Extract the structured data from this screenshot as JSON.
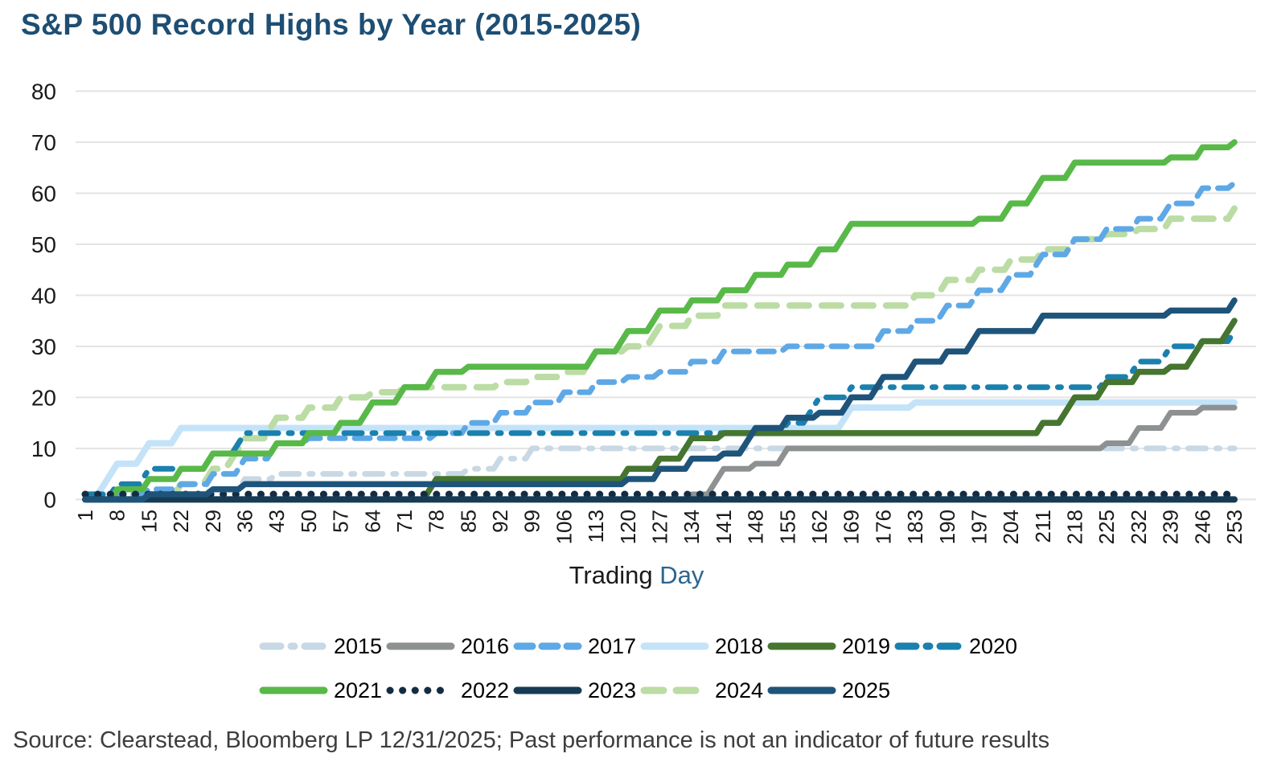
{
  "title": "S&P 500 Record Highs by Year (2015-2025)",
  "source_note": "Source: Clearstead, Bloomberg LP 12/31/2025; Past performance is not an indicator of future results",
  "chart_data": {
    "type": "line",
    "title": "S&P 500 Record Highs by Year (2015-2025)",
    "xlabel_parts": {
      "prefix": "Trading ",
      "highlight": "Day"
    },
    "ylabel": "",
    "ylim": [
      0,
      80
    ],
    "yticks": [
      0,
      10,
      20,
      30,
      40,
      50,
      60,
      70,
      80
    ],
    "grid": "horizontal",
    "legend_position": "bottom",
    "x": [
      1,
      8,
      15,
      22,
      29,
      36,
      43,
      50,
      57,
      64,
      71,
      78,
      85,
      92,
      99,
      106,
      113,
      120,
      127,
      134,
      141,
      148,
      155,
      162,
      169,
      176,
      183,
      190,
      197,
      204,
      211,
      218,
      225,
      232,
      239,
      246,
      253
    ],
    "xtick_labels": [
      "1",
      "8",
      "15",
      "22",
      "29",
      "36",
      "43",
      "50",
      "57",
      "64",
      "71",
      "78",
      "85",
      "92",
      "99",
      "106",
      "113",
      "120",
      "127",
      "134",
      "141",
      "148",
      "155",
      "162",
      "169",
      "176",
      "183",
      "190",
      "197",
      "204",
      "211",
      "218",
      "225",
      "232",
      "239",
      "246",
      "253"
    ],
    "series": [
      {
        "name": "2015",
        "color": "#C8D8E5",
        "pattern": "dash-dot",
        "values": [
          0,
          0,
          0,
          0,
          0,
          4,
          5,
          5,
          5,
          5,
          5,
          5,
          6,
          8,
          10,
          10,
          10,
          10,
          10,
          10,
          10,
          10,
          10,
          10,
          10,
          10,
          10,
          10,
          10,
          10,
          10,
          10,
          10,
          10,
          10,
          10,
          10
        ]
      },
      {
        "name": "2016",
        "color": "#8E9192",
        "pattern": "solid",
        "values": [
          0,
          0,
          0,
          0,
          0,
          0,
          0,
          0,
          0,
          0,
          0,
          0,
          0,
          0,
          0,
          0,
          0,
          0,
          0,
          1,
          6,
          7,
          10,
          10,
          10,
          10,
          10,
          10,
          10,
          10,
          10,
          10,
          11,
          14,
          17,
          18,
          18
        ]
      },
      {
        "name": "2017",
        "color": "#5FA8E6",
        "pattern": "dashed",
        "values": [
          0,
          1,
          2,
          3,
          5,
          8,
          11,
          12,
          12,
          12,
          12,
          13,
          15,
          17,
          19,
          21,
          23,
          24,
          25,
          27,
          29,
          29,
          30,
          30,
          30,
          33,
          35,
          38,
          41,
          44,
          48,
          51,
          53,
          55,
          58,
          61,
          62
        ]
      },
      {
        "name": "2018",
        "color": "#C4E3F8",
        "pattern": "solid",
        "values": [
          1,
          7,
          11,
          14,
          14,
          14,
          14,
          14,
          14,
          14,
          14,
          14,
          14,
          14,
          14,
          14,
          14,
          14,
          14,
          14,
          14,
          14,
          14,
          14,
          18,
          18,
          19,
          19,
          19,
          19,
          19,
          19,
          19,
          19,
          19,
          19,
          19
        ]
      },
      {
        "name": "2019",
        "color": "#45752F",
        "pattern": "solid",
        "values": [
          0,
          0,
          0,
          0,
          0,
          0,
          0,
          0,
          0,
          0,
          0,
          4,
          4,
          4,
          4,
          4,
          4,
          6,
          8,
          12,
          13,
          13,
          13,
          13,
          13,
          13,
          13,
          13,
          13,
          13,
          15,
          20,
          23,
          25,
          26,
          31,
          35
        ]
      },
      {
        "name": "2020",
        "color": "#1A80AE",
        "pattern": "dash-dot",
        "values": [
          1,
          3,
          6,
          6,
          9,
          13,
          13,
          13,
          13,
          13,
          13,
          13,
          13,
          13,
          13,
          13,
          13,
          13,
          13,
          13,
          13,
          13,
          15,
          20,
          22,
          22,
          22,
          22,
          22,
          22,
          22,
          22,
          24,
          27,
          30,
          31,
          33
        ]
      },
      {
        "name": "2021",
        "color": "#58B948",
        "pattern": "solid",
        "values": [
          0,
          2,
          4,
          6,
          9,
          9,
          11,
          13,
          15,
          19,
          22,
          25,
          26,
          26,
          26,
          26,
          29,
          33,
          37,
          39,
          41,
          44,
          46,
          49,
          54,
          54,
          54,
          54,
          55,
          58,
          63,
          66,
          66,
          66,
          67,
          69,
          70
        ]
      },
      {
        "name": "2022",
        "color": "#142C42",
        "pattern": "dotted",
        "values": [
          1,
          1,
          1,
          1,
          1,
          1,
          1,
          1,
          1,
          1,
          1,
          1,
          1,
          1,
          1,
          1,
          1,
          1,
          1,
          1,
          1,
          1,
          1,
          1,
          1,
          1,
          1,
          1,
          1,
          1,
          1,
          1,
          1,
          1,
          1,
          1,
          1
        ]
      },
      {
        "name": "2023",
        "color": "#173B54",
        "pattern": "solid",
        "values": [
          0,
          0,
          0,
          0,
          0,
          0,
          0,
          0,
          0,
          0,
          0,
          0,
          0,
          0,
          0,
          0,
          0,
          0,
          0,
          0,
          0,
          0,
          0,
          0,
          0,
          0,
          0,
          0,
          0,
          0,
          0,
          0,
          0,
          0,
          0,
          0,
          0
        ]
      },
      {
        "name": "2024",
        "color": "#BBDCA4",
        "pattern": "long-dashed",
        "values": [
          0,
          0,
          1,
          3,
          6,
          12,
          16,
          18,
          20,
          21,
          22,
          22,
          22,
          23,
          24,
          25,
          29,
          30,
          34,
          36,
          38,
          38,
          38,
          38,
          38,
          38,
          40,
          43,
          45,
          47,
          49,
          51,
          52,
          53,
          55,
          55,
          57
        ]
      },
      {
        "name": "2025",
        "color": "#1F547A",
        "pattern": "solid",
        "values": [
          0,
          0,
          1,
          1,
          2,
          3,
          3,
          3,
          3,
          3,
          3,
          3,
          3,
          3,
          3,
          3,
          3,
          4,
          6,
          8,
          9,
          14,
          16,
          17,
          20,
          24,
          27,
          29,
          33,
          33,
          36,
          36,
          36,
          36,
          37,
          37,
          39
        ]
      }
    ]
  },
  "legend": {
    "row1": [
      "2015",
      "2016",
      "2017",
      "2018",
      "2019",
      "2020"
    ],
    "row2": [
      "2021",
      "2022",
      "2023",
      "2024",
      "2025"
    ]
  }
}
